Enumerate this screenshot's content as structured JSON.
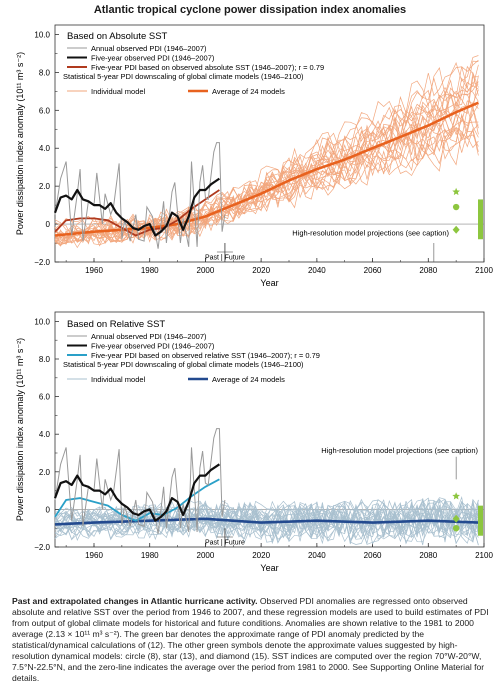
{
  "figure_title": "Atlantic tropical cyclone power dissipation index anomalies",
  "caption": {
    "bold": "Past and extrapolated changes in Atlantic hurricane activity.",
    "text": "Observed PDI anomalies are regressed onto observed absolute and relative SST over the period from 1946 to 2007, and these regression models are used to build estimates of PDI from output of global climate models for historical and future conditions. Anomalies are shown relative to the 1981 to 2000 average (2.13 × 10¹¹ m³ s⁻²). The green bar denotes the approximate range of PDI anomaly predicted by the statistical/dynamical calculations of (12). The other green symbols denote the approximate values suggested by high-resolution dynamical models: circle (8), star (13), and diamond (15). SST indices are computed over the region 70°W-20°W, 7.5°N-22.5°N, and the zero-line indicates the average over the period from 1981 to 2000. See Supporting Online Material for details."
  },
  "colors": {
    "annual": "#9a9a9a",
    "five_year_obs": "#111111",
    "abs_regression": "#b03a1e",
    "abs_individual": "#f2a77e",
    "abs_average": "#e8621f",
    "rel_regression": "#2aa0c8",
    "rel_individual": "#a9c0cf",
    "rel_average": "#234a8f",
    "green": "#8dc63f"
  },
  "chart_data": [
    {
      "type": "line",
      "title": "Based on Absolute SST",
      "xlabel": "Year",
      "ylabel": "Power dissipation index anomaly (10¹¹ m³ s⁻²)",
      "xlim": [
        1946,
        2100
      ],
      "ylim": [
        -2.0,
        10.5
      ],
      "xticks": [
        1960,
        1980,
        2000,
        2020,
        2040,
        2060,
        2080,
        2100
      ],
      "yticks": [
        -2.0,
        0,
        2.0,
        4.0,
        6.0,
        8.0,
        10.0
      ],
      "ytick_labels": [
        "−2.0",
        "0",
        "2.0",
        "4.0",
        "6.0",
        "8.0",
        "10.0"
      ],
      "divider_label": "Past | Future",
      "annotation": "High-resolution model projections (see caption)",
      "legend": {
        "annual": "Annual observed PDI (1946–2007)",
        "five_year": "Five-year observed PDI (1946–2007)",
        "regression": "Five-year PDI based on observed absolute SST (1946–2007); r = 0.79",
        "statistical": "Statistical 5-year PDI downscaling of global climate models (1946–2100)",
        "individual": "Individual model",
        "average": "Average of 24 models"
      },
      "series": [
        {
          "name": "Annual observed PDI (1946–2007)",
          "x": [
            1946,
            1948,
            1950,
            1952,
            1954,
            1955,
            1956,
            1958,
            1960,
            1961,
            1963,
            1964,
            1966,
            1967,
            1969,
            1970,
            1971,
            1973,
            1975,
            1976,
            1978,
            1979,
            1981,
            1983,
            1985,
            1986,
            1988,
            1989,
            1991,
            1992,
            1994,
            1995,
            1996,
            1997,
            1998,
            1999,
            2000,
            2001,
            2003,
            2004,
            2005,
            2006,
            2007
          ],
          "y": [
            0.5,
            2.4,
            3.3,
            -0.6,
            1.6,
            2.9,
            -0.9,
            1.2,
            1.0,
            2.7,
            0.0,
            1.6,
            0.5,
            0.9,
            3.2,
            -0.8,
            0.2,
            -0.9,
            0.5,
            -0.8,
            -0.9,
            0.9,
            0.4,
            -1.3,
            1.2,
            -1.0,
            1.7,
            2.2,
            -1.0,
            0.3,
            -1.2,
            3.3,
            1.0,
            -1.2,
            2.2,
            3.1,
            1.4,
            1.3,
            3.8,
            4.3,
            4.3,
            -0.4,
            0.5
          ]
        },
        {
          "name": "Five-year observed PDI (1946–2007)",
          "x": [
            1946,
            1948,
            1950,
            1952,
            1954,
            1956,
            1958,
            1960,
            1962,
            1964,
            1966,
            1968,
            1970,
            1972,
            1974,
            1976,
            1978,
            1980,
            1982,
            1984,
            1986,
            1988,
            1990,
            1992,
            1994,
            1996,
            1998,
            2000,
            2002,
            2004,
            2005
          ],
          "y": [
            0.6,
            1.4,
            1.5,
            1.3,
            1.8,
            1.3,
            1.2,
            1.0,
            1.0,
            0.8,
            1.1,
            0.6,
            0.3,
            0.1,
            -0.2,
            -0.3,
            -0.1,
            0.0,
            -0.6,
            -0.4,
            -0.1,
            0.6,
            0.4,
            -0.3,
            0.4,
            1.4,
            1.8,
            1.8,
            2.1,
            2.3,
            2.4
          ]
        },
        {
          "name": "Five-year PDI based on observed absolute SST (1946–2007); r = 0.79",
          "x": [
            1946,
            1950,
            1955,
            1960,
            1965,
            1970,
            1975,
            1980,
            1985,
            1990,
            1995,
            2000,
            2005
          ],
          "y": [
            -0.4,
            0.2,
            0.3,
            0.3,
            0.2,
            -0.2,
            -0.6,
            -0.3,
            -0.2,
            0.2,
            0.8,
            1.3,
            1.8
          ]
        },
        {
          "name": "Average of 24 models",
          "x": [
            1946,
            1960,
            1970,
            1980,
            1990,
            2000,
            2010,
            2020,
            2030,
            2040,
            2050,
            2060,
            2070,
            2080,
            2090,
            2098
          ],
          "y": [
            -0.6,
            -0.4,
            -0.3,
            -0.2,
            0.0,
            0.4,
            1.0,
            1.6,
            2.3,
            2.9,
            3.4,
            4.0,
            4.6,
            5.2,
            5.9,
            6.4
          ]
        }
      ],
      "green_markers": {
        "star": 1.7,
        "circle": 0.9,
        "diamond": -0.3
      },
      "green_bar": [
        -0.8,
        1.3
      ]
    },
    {
      "type": "line",
      "title": "Based on Relative SST",
      "xlabel": "Year",
      "ylabel": "Power dissipation index anomaly (10¹¹ m³ s⁻²)",
      "xlim": [
        1946,
        2100
      ],
      "ylim": [
        -2.0,
        10.5
      ],
      "xticks": [
        1960,
        1980,
        2000,
        2020,
        2040,
        2060,
        2080,
        2100
      ],
      "yticks": [
        -2.0,
        0,
        2.0,
        4.0,
        6.0,
        8.0,
        10.0
      ],
      "ytick_labels": [
        "−2.0",
        "0",
        "2.0",
        "4.0",
        "6.0",
        "8.0",
        "10.0"
      ],
      "divider_label": "Past | Future",
      "annotation": "High-resolution model projections (see caption)",
      "legend": {
        "annual": "Annual observed PDI (1946–2007)",
        "five_year": "Five-year observed PDI (1946–2007)",
        "regression": "Five-year PDI based on observed relative SST (1946–2007); r = 0.79",
        "statistical": "Statistical 5-year PDI downscaling of global climate models (1946–2100)",
        "individual": "Individual model",
        "average": "Average of 24 models"
      },
      "series": [
        {
          "name": "Annual observed PDI (1946–2007)",
          "x": [
            1946,
            1948,
            1950,
            1952,
            1954,
            1955,
            1956,
            1958,
            1960,
            1961,
            1963,
            1964,
            1966,
            1967,
            1969,
            1970,
            1971,
            1973,
            1975,
            1976,
            1978,
            1979,
            1981,
            1983,
            1985,
            1986,
            1988,
            1989,
            1991,
            1992,
            1994,
            1995,
            1996,
            1997,
            1998,
            1999,
            2000,
            2001,
            2003,
            2004,
            2005,
            2006,
            2007
          ],
          "y": [
            0.5,
            2.4,
            3.3,
            -0.6,
            1.6,
            2.9,
            -0.9,
            1.2,
            1.0,
            2.7,
            0.0,
            1.6,
            0.5,
            0.9,
            3.2,
            -0.8,
            0.2,
            -0.9,
            0.5,
            -0.8,
            -0.9,
            0.9,
            0.4,
            -1.3,
            1.2,
            -1.0,
            1.7,
            2.2,
            -1.0,
            0.3,
            -1.2,
            3.3,
            1.0,
            -1.2,
            2.2,
            3.1,
            1.4,
            1.3,
            3.8,
            4.3,
            4.3,
            -0.4,
            0.5
          ]
        },
        {
          "name": "Five-year observed PDI (1946–2007)",
          "x": [
            1946,
            1948,
            1950,
            1952,
            1954,
            1956,
            1958,
            1960,
            1962,
            1964,
            1966,
            1968,
            1970,
            1972,
            1974,
            1976,
            1978,
            1980,
            1982,
            1984,
            1986,
            1988,
            1990,
            1992,
            1994,
            1996,
            1998,
            2000,
            2002,
            2004,
            2005
          ],
          "y": [
            0.6,
            1.4,
            1.5,
            1.3,
            1.8,
            1.3,
            1.2,
            1.0,
            1.0,
            0.8,
            1.1,
            0.6,
            0.3,
            0.1,
            -0.2,
            -0.3,
            -0.1,
            0.0,
            -0.6,
            -0.4,
            -0.1,
            0.6,
            0.4,
            -0.3,
            0.4,
            1.4,
            1.8,
            1.8,
            2.1,
            2.3,
            2.4
          ]
        },
        {
          "name": "Five-year PDI based on observed relative SST (1946–2007); r = 0.79",
          "x": [
            1946,
            1950,
            1955,
            1960,
            1965,
            1970,
            1975,
            1980,
            1985,
            1990,
            1995,
            2000,
            2005
          ],
          "y": [
            -0.4,
            0.5,
            0.6,
            0.4,
            0.2,
            -0.3,
            -0.6,
            -0.2,
            -0.3,
            0.1,
            0.7,
            1.2,
            1.6
          ]
        },
        {
          "name": "Average of 24 models",
          "x": [
            1946,
            1960,
            1980,
            2000,
            2020,
            2040,
            2060,
            2080,
            2098
          ],
          "y": [
            -0.8,
            -0.7,
            -0.6,
            -0.5,
            -0.7,
            -0.6,
            -0.7,
            -0.6,
            -0.7
          ]
        }
      ],
      "green_markers": {
        "star": 0.7,
        "circle": -1.0,
        "diamond": -0.5
      },
      "green_bar": [
        -1.4,
        0.2
      ]
    }
  ]
}
